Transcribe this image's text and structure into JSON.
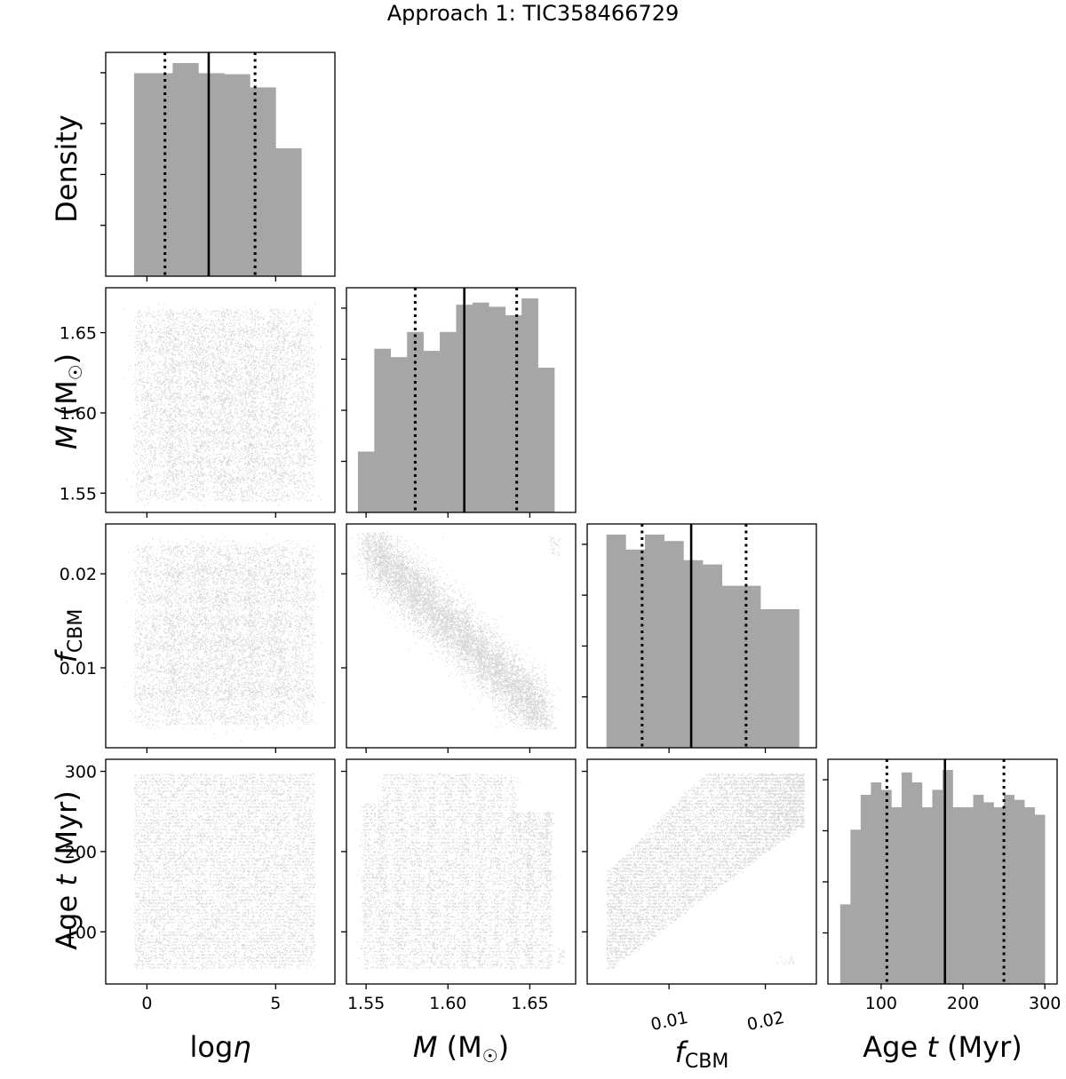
{
  "chart_data": {
    "type": "corner",
    "title": "Approach 1: TIC358466729",
    "parameters": [
      {
        "key": "logeta",
        "label_main": "log",
        "label_sym": "η",
        "range": [
          -1.6,
          7.3
        ],
        "ticks": [
          0,
          5
        ],
        "tick_labels": [
          "0",
          "5"
        ]
      },
      {
        "key": "M",
        "label_main": "M",
        "label_unit": "(M",
        "label_sun": "☉",
        "label_close": ")",
        "range": [
          1.538,
          1.678
        ],
        "ticks": [
          1.55,
          1.6,
          1.65
        ],
        "tick_labels": [
          "1.55",
          "1.60",
          "1.65"
        ]
      },
      {
        "key": "fCBM",
        "label_main": "f",
        "label_sub": "CBM",
        "range": [
          0.0015,
          0.0253
        ],
        "ticks": [
          0.01,
          0.02
        ],
        "tick_labels": [
          "0.01",
          "0.02"
        ]
      },
      {
        "key": "age",
        "label_main": "Age ",
        "label_sym": "t",
        "label_unit": " (Myr)",
        "range": [
          35,
          315
        ],
        "ticks": [
          100,
          200,
          300
        ],
        "tick_labels": [
          "100",
          "200",
          "300"
        ]
      }
    ],
    "density_label": "Density",
    "histograms": [
      {
        "param": "logeta",
        "bin_edges": [
          -0.5,
          1.0,
          2.0,
          3.0,
          4.0,
          5.0,
          6.0
        ],
        "counts": [
          1.0,
          1.05,
          1.0,
          0.995,
          0.93,
          0.63
        ],
        "median": 2.4,
        "q16": 0.7,
        "q84": 4.2
      },
      {
        "param": "M",
        "bin_edges": [
          1.545,
          1.55,
          1.555,
          1.56,
          1.565,
          1.57,
          1.575,
          1.58,
          1.585,
          1.59,
          1.595,
          1.6,
          1.605,
          1.61,
          1.615,
          1.62,
          1.625,
          1.63,
          1.635,
          1.64,
          1.645,
          1.65,
          1.655,
          1.66,
          1.665,
          1.67
        ],
        "counts": [
          0.29,
          0.29,
          0.78,
          0.78,
          0.74,
          0.74,
          0.86,
          0.86,
          0.77,
          0.77,
          0.86,
          0.86,
          0.99,
          0.99,
          1.0,
          1.0,
          0.98,
          0.98,
          0.94,
          0.94,
          1.02,
          1.02,
          0.69,
          0.69,
          0.0
        ],
        "median": 1.61,
        "q16": 1.58,
        "q84": 1.642
      },
      {
        "param": "fCBM",
        "bin_edges": [
          0.0035,
          0.0055,
          0.0075,
          0.0095,
          0.0115,
          0.0135,
          0.0155,
          0.0175,
          0.0195,
          0.0215,
          0.0235
        ],
        "counts": [
          1.0,
          0.93,
          1.0,
          0.97,
          0.88,
          0.86,
          0.76,
          0.76,
          0.65,
          0.65
        ],
        "median": 0.0123,
        "q16": 0.0072,
        "q84": 0.018
      },
      {
        "param": "age",
        "bin_edges": [
          50,
          62.5,
          75,
          87.5,
          100,
          112.5,
          125,
          137.5,
          150,
          162.5,
          175,
          187.5,
          200,
          212.5,
          225,
          237.5,
          250,
          262.5,
          275,
          287.5,
          300
        ],
        "counts": [
          0.32,
          0.62,
          0.76,
          0.81,
          0.78,
          0.71,
          0.85,
          0.81,
          0.71,
          0.78,
          0.86,
          0.71,
          0.71,
          0.76,
          0.73,
          0.71,
          0.76,
          0.74,
          0.71,
          0.68
        ],
        "median": 178,
        "q16": 107,
        "q84": 250
      }
    ],
    "scatter_panels": [
      {
        "x": "logeta",
        "y": "M",
        "relation": "uniform grid"
      },
      {
        "x": "logeta",
        "y": "fCBM",
        "relation": "uniform grid"
      },
      {
        "x": "M",
        "y": "fCBM",
        "relation": "anti-correlated diagonal band"
      },
      {
        "x": "logeta",
        "y": "age",
        "relation": "uniform"
      },
      {
        "x": "M",
        "y": "age",
        "relation": "broad cloud"
      },
      {
        "x": "fCBM",
        "y": "age",
        "relation": "positively correlated"
      }
    ],
    "colors": {
      "hist_fill": "#a6a6a6",
      "points": "#000000",
      "median_line": "#000000"
    }
  }
}
